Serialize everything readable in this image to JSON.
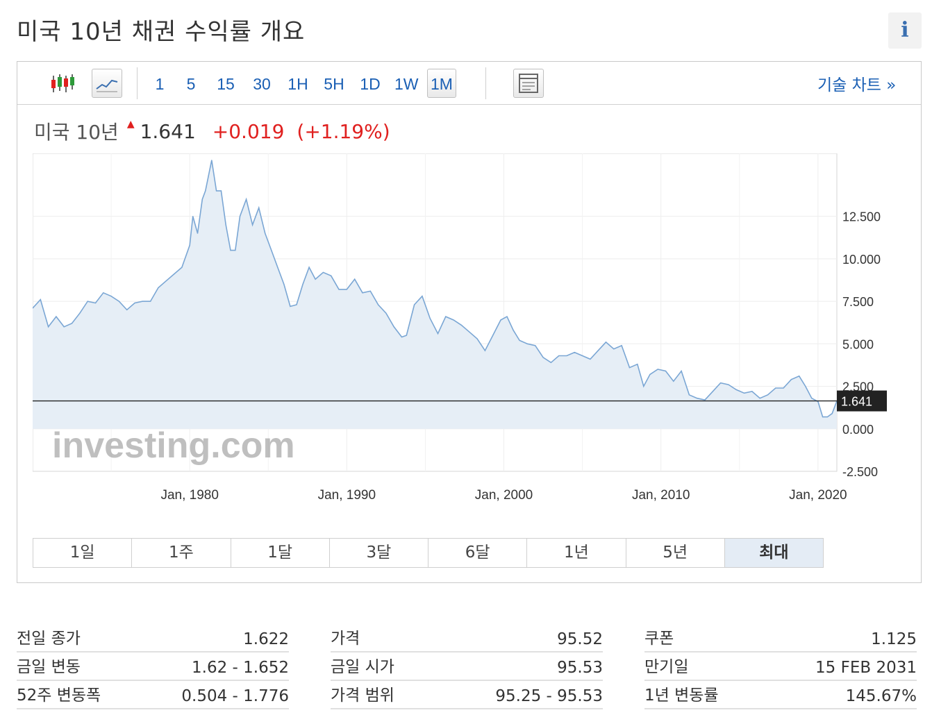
{
  "page": {
    "title": "미국 10년 채권 수익률 개요",
    "info_label": "i"
  },
  "toolbar": {
    "intervals": [
      "1",
      "5",
      "15",
      "30",
      "1H",
      "5H",
      "1D",
      "1W",
      "1M"
    ],
    "active_interval": "1M",
    "tech_chart_link": "기술 차트 »"
  },
  "quote": {
    "name": "미국 10년",
    "last": "1.641",
    "change": "+0.019",
    "change_pct": "(+1.19%)",
    "direction_icon": "up-arrow-icon"
  },
  "ranges": {
    "items": [
      "1일",
      "1주",
      "1달",
      "3달",
      "6달",
      "1년",
      "5년",
      "최대"
    ],
    "active": "최대"
  },
  "colors": {
    "line": "#7aa6d4",
    "fill": "#e6eef6",
    "up": "#e0201f",
    "link": "#1a5fb4",
    "label_bg": "#222222"
  },
  "chart_data": {
    "type": "area",
    "title": "",
    "xlabel": "",
    "ylabel": "",
    "x_ticks": [
      {
        "x": 1980.0,
        "label": "Jan, 1980"
      },
      {
        "x": 1990.0,
        "label": "Jan, 1990"
      },
      {
        "x": 2000.0,
        "label": "Jan, 2000"
      },
      {
        "x": 2010.0,
        "label": "Jan, 2010"
      },
      {
        "x": 2020.0,
        "label": "Jan, 2020"
      }
    ],
    "y_ticks": [
      "-2.500",
      "0.000",
      "2.500",
      "5.000",
      "7.500",
      "10.000",
      "12.500"
    ],
    "y_tick_values": [
      -2.5,
      0,
      2.5,
      5,
      7.5,
      10,
      12.5
    ],
    "xlim": [
      1970.0,
      2021.2
    ],
    "ylim": [
      -2.5,
      16.2
    ],
    "current_value": 1.641,
    "current_label": "1.641",
    "watermark": "investing.com",
    "grid": true,
    "series": [
      {
        "x": [
          1970.0,
          1970.5,
          1971.0,
          1971.5,
          1972.0,
          1972.5,
          1973.0,
          1973.5,
          1974.0,
          1974.5,
          1975.0,
          1975.5,
          1976.0,
          1976.5,
          1977.0,
          1977.5,
          1978.0,
          1978.5,
          1979.0,
          1979.5,
          1980.0,
          1980.2,
          1980.5,
          1980.8,
          1981.0,
          1981.4,
          1981.7,
          1982.0,
          1982.3,
          1982.6,
          1982.9,
          1983.2,
          1983.6,
          1984.0,
          1984.4,
          1984.8,
          1985.2,
          1985.6,
          1986.0,
          1986.4,
          1986.8,
          1987.2,
          1987.6,
          1988.0,
          1988.5,
          1989.0,
          1989.5,
          1990.0,
          1990.5,
          1991.0,
          1991.5,
          1992.0,
          1992.5,
          1993.0,
          1993.5,
          1993.8,
          1994.3,
          1994.8,
          1995.3,
          1995.8,
          1996.3,
          1996.8,
          1997.3,
          1997.8,
          1998.3,
          1998.8,
          1999.3,
          1999.8,
          2000.2,
          2000.6,
          2001.0,
          2001.5,
          2002.0,
          2002.5,
          2003.0,
          2003.5,
          2004.0,
          2004.5,
          2005.0,
          2005.5,
          2006.0,
          2006.5,
          2007.0,
          2007.5,
          2008.0,
          2008.5,
          2008.9,
          2009.3,
          2009.8,
          2010.3,
          2010.8,
          2011.3,
          2011.8,
          2012.3,
          2012.8,
          2013.3,
          2013.8,
          2014.3,
          2014.8,
          2015.3,
          2015.8,
          2016.3,
          2016.8,
          2017.3,
          2017.8,
          2018.3,
          2018.8,
          2019.2,
          2019.6,
          2020.0,
          2020.3,
          2020.6,
          2020.9,
          2021.2
        ],
        "values": [
          7.1,
          7.6,
          6.0,
          6.6,
          6.0,
          6.2,
          6.8,
          7.5,
          7.4,
          8.0,
          7.8,
          7.5,
          7.0,
          7.4,
          7.5,
          7.5,
          8.3,
          8.7,
          9.1,
          9.5,
          10.8,
          12.5,
          11.5,
          13.5,
          14.0,
          15.8,
          14.0,
          14.0,
          12.0,
          10.5,
          10.5,
          12.5,
          13.5,
          12.0,
          13.0,
          11.5,
          10.5,
          9.5,
          8.5,
          7.2,
          7.3,
          8.5,
          9.5,
          8.8,
          9.2,
          9.0,
          8.2,
          8.2,
          8.8,
          8.0,
          8.1,
          7.3,
          6.8,
          6.0,
          5.4,
          5.5,
          7.3,
          7.8,
          6.5,
          5.6,
          6.6,
          6.4,
          6.1,
          5.7,
          5.3,
          4.6,
          5.5,
          6.4,
          6.6,
          5.8,
          5.2,
          5.0,
          4.9,
          4.2,
          3.9,
          4.3,
          4.3,
          4.5,
          4.3,
          4.1,
          4.6,
          5.1,
          4.7,
          4.9,
          3.6,
          3.8,
          2.5,
          3.2,
          3.5,
          3.4,
          2.8,
          3.4,
          2.0,
          1.8,
          1.7,
          2.2,
          2.7,
          2.6,
          2.3,
          2.1,
          2.2,
          1.8,
          2.0,
          2.4,
          2.4,
          2.9,
          3.1,
          2.5,
          1.8,
          1.6,
          0.7,
          0.7,
          0.9,
          1.64
        ]
      }
    ]
  },
  "stats": [
    {
      "key": "stat-col-1",
      "rows": [
        {
          "label": "전일 종가",
          "value": "1.622"
        },
        {
          "label": "금일 변동",
          "value": "1.62 - 1.652"
        },
        {
          "label": "52주 변동폭",
          "value": "0.504 - 1.776"
        }
      ]
    },
    {
      "key": "stat-col-2",
      "rows": [
        {
          "label": "가격",
          "value": "95.52"
        },
        {
          "label": "금일 시가",
          "value": "95.53"
        },
        {
          "label": "가격 범위",
          "value": "95.25 - 95.53"
        }
      ]
    },
    {
      "key": "stat-col-3",
      "rows": [
        {
          "label": "쿠폰",
          "value": "1.125"
        },
        {
          "label": "만기일",
          "value": "15 FEB 2031"
        },
        {
          "label": "1년 변동률",
          "value": "145.67%"
        }
      ]
    }
  ]
}
